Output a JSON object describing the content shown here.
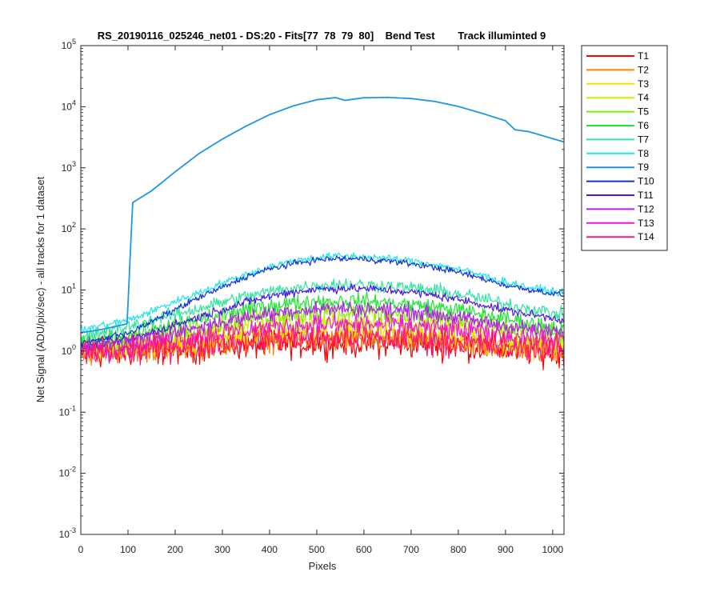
{
  "chart_data": {
    "type": "line",
    "title": "RS_20190116_025246_net01 - DS:20 - Fits[77  78  79  80]    Bend Test        Track illuminted 9",
    "xlabel": "Pixels",
    "ylabel": "Net Signal (ADU/pix/sec) - all tracks for 1 dataset",
    "xlim": [
      0,
      1024
    ],
    "ylim": [
      0.001,
      100000
    ],
    "yscale": "log",
    "x_ticks": [
      0,
      100,
      200,
      300,
      400,
      500,
      600,
      700,
      800,
      900,
      1000
    ],
    "y_ticks": [
      {
        "value": 0.001,
        "base": "10",
        "exp": "-3"
      },
      {
        "value": 0.01,
        "base": "10",
        "exp": "-2"
      },
      {
        "value": 0.1,
        "base": "10",
        "exp": "-1"
      },
      {
        "value": 1,
        "base": "10",
        "exp": "0"
      },
      {
        "value": 10,
        "base": "10",
        "exp": "1"
      },
      {
        "value": 100,
        "base": "10",
        "exp": "2"
      },
      {
        "value": 1000,
        "base": "10",
        "exp": "3"
      },
      {
        "value": 10000,
        "base": "10",
        "exp": "4"
      },
      {
        "value": 100000,
        "base": "10",
        "exp": "5"
      }
    ],
    "grid": false,
    "legend_position": "outside-top-right",
    "x": [
      0,
      50,
      98,
      110,
      150,
      200,
      250,
      300,
      350,
      400,
      450,
      500,
      540,
      560,
      600,
      650,
      700,
      750,
      800,
      850,
      900,
      920,
      950,
      1000,
      1024
    ],
    "series": [
      {
        "name": "T1",
        "color": "#ff0000",
        "noise": 0.26,
        "values": [
          0.85,
          0.9,
          0.95,
          0.95,
          1.0,
          1.05,
          1.1,
          1.2,
          1.25,
          1.3,
          1.3,
          1.35,
          1.35,
          1.35,
          1.35,
          1.3,
          1.3,
          1.25,
          1.2,
          1.15,
          1.05,
          1.05,
          1.0,
          0.95,
          0.9
        ]
      },
      {
        "name": "T2",
        "color": "#ff7f00",
        "noise": 0.24,
        "values": [
          0.95,
          1.0,
          1.05,
          1.05,
          1.1,
          1.15,
          1.25,
          1.35,
          1.45,
          1.55,
          1.6,
          1.6,
          1.6,
          1.6,
          1.6,
          1.55,
          1.5,
          1.45,
          1.35,
          1.25,
          1.15,
          1.15,
          1.1,
          1.05,
          1.0
        ]
      },
      {
        "name": "T3",
        "color": "#ffd700",
        "noise": 0.22,
        "values": [
          1.0,
          1.05,
          1.1,
          1.1,
          1.2,
          1.3,
          1.45,
          1.6,
          1.75,
          1.9,
          2.0,
          2.05,
          2.05,
          2.05,
          2.05,
          2.0,
          1.9,
          1.8,
          1.65,
          1.5,
          1.35,
          1.3,
          1.25,
          1.15,
          1.1
        ]
      },
      {
        "name": "T4",
        "color": "#c8f000",
        "noise": 0.2,
        "values": [
          1.1,
          1.2,
          1.25,
          1.3,
          1.45,
          1.65,
          1.9,
          2.2,
          2.5,
          2.75,
          2.95,
          3.0,
          3.05,
          3.05,
          3.05,
          2.95,
          2.8,
          2.6,
          2.35,
          2.1,
          1.85,
          1.75,
          1.6,
          1.45,
          1.4
        ]
      },
      {
        "name": "T5",
        "color": "#7cf000",
        "noise": 0.18,
        "values": [
          1.2,
          1.35,
          1.45,
          1.5,
          1.75,
          2.05,
          2.45,
          2.9,
          3.4,
          3.85,
          4.2,
          4.35,
          4.4,
          4.4,
          4.35,
          4.2,
          3.95,
          3.6,
          3.2,
          2.8,
          2.4,
          2.3,
          2.1,
          1.85,
          1.7
        ]
      },
      {
        "name": "T6",
        "color": "#1ee632",
        "noise": 0.15,
        "values": [
          1.3,
          1.6,
          1.8,
          1.85,
          2.2,
          2.7,
          3.3,
          4.0,
          4.8,
          5.5,
          6.1,
          6.5,
          6.6,
          6.6,
          6.5,
          6.2,
          5.8,
          5.3,
          4.7,
          4.0,
          3.4,
          3.2,
          2.9,
          2.5,
          2.3
        ]
      },
      {
        "name": "T7",
        "color": "#2ee6a0",
        "noise": 0.13,
        "values": [
          1.6,
          2.1,
          2.5,
          2.6,
          3.2,
          4.0,
          5.0,
          6.3,
          7.8,
          9.3,
          10.8,
          11.8,
          12.3,
          12.3,
          12.2,
          11.6,
          10.8,
          9.8,
          8.6,
          7.2,
          5.9,
          5.5,
          5.0,
          4.2,
          3.9
        ]
      },
      {
        "name": "T8",
        "color": "#1ee6f0",
        "noise": 0.07,
        "values": [
          2.2,
          2.7,
          3.2,
          3.4,
          4.5,
          6.5,
          9.0,
          13.0,
          18.0,
          24.0,
          30.0,
          34.0,
          36.0,
          36.0,
          35.0,
          33.0,
          30.0,
          26.0,
          22.0,
          17.5,
          13.5,
          12.5,
          11.0,
          9.5,
          8.8
        ]
      },
      {
        "name": "T9",
        "color": "#1e96e6",
        "noise": 0.0,
        "values": [
          2.0,
          2.3,
          2.8,
          270.0,
          420.0,
          860.0,
          1700.0,
          2950.0,
          4800.0,
          7400.0,
          10300.0,
          13000.0,
          14100.0,
          12700.0,
          14000.0,
          14200.0,
          13600.0,
          12200.0,
          10100.0,
          7800.0,
          5900.0,
          4200.0,
          3900.0,
          3000.0,
          2650.0
        ]
      },
      {
        "name": "T10",
        "color": "#1432dc",
        "noise": 0.06,
        "values": [
          1.3,
          1.65,
          2.0,
          2.1,
          3.0,
          4.8,
          7.5,
          11.0,
          16.5,
          22.0,
          27.0,
          31.0,
          32.5,
          32.5,
          32.0,
          30.0,
          27.0,
          23.5,
          19.5,
          15.5,
          12.0,
          11.2,
          10.2,
          8.8,
          8.2
        ]
      },
      {
        "name": "T11",
        "color": "#5014e6",
        "noise": 0.08,
        "values": [
          1.1,
          1.35,
          1.55,
          1.6,
          2.0,
          2.7,
          3.6,
          4.8,
          6.3,
          7.9,
          9.3,
          10.3,
          10.6,
          10.6,
          10.5,
          10.0,
          9.2,
          8.2,
          7.0,
          5.8,
          4.7,
          4.4,
          4.0,
          3.5,
          3.2
        ]
      },
      {
        "name": "T12",
        "color": "#b41ef0",
        "noise": 0.14,
        "values": [
          1.05,
          1.25,
          1.4,
          1.45,
          1.7,
          2.0,
          2.5,
          3.0,
          3.6,
          4.1,
          4.6,
          4.9,
          5.0,
          5.0,
          4.9,
          4.7,
          4.4,
          4.0,
          3.5,
          3.0,
          2.6,
          2.5,
          2.3,
          2.1,
          1.95
        ]
      },
      {
        "name": "T13",
        "color": "#f014dc",
        "noise": 0.2,
        "values": [
          0.95,
          1.05,
          1.15,
          1.2,
          1.35,
          1.55,
          1.75,
          2.0,
          2.25,
          2.5,
          2.65,
          2.75,
          2.75,
          2.75,
          2.75,
          2.65,
          2.55,
          2.4,
          2.2,
          2.0,
          1.8,
          1.75,
          1.65,
          1.55,
          1.5
        ]
      },
      {
        "name": "T14",
        "color": "#ff1478",
        "noise": 0.25,
        "values": [
          0.95,
          1.0,
          1.05,
          1.05,
          1.1,
          1.2,
          1.3,
          1.4,
          1.5,
          1.6,
          1.65,
          1.65,
          1.65,
          1.65,
          1.65,
          1.6,
          1.55,
          1.5,
          1.4,
          1.3,
          1.2,
          1.2,
          1.15,
          1.1,
          1.05
        ]
      }
    ]
  }
}
